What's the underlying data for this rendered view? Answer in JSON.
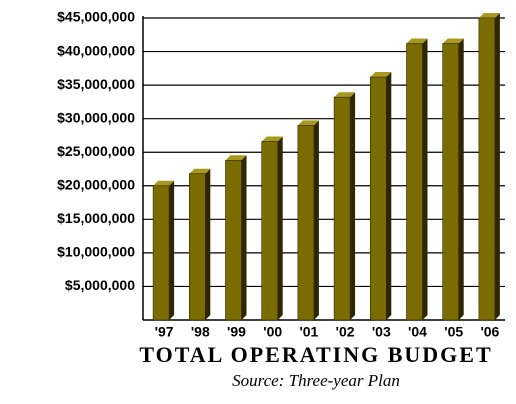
{
  "chart_data": {
    "type": "bar",
    "title": "TOTAL OPERATING BUDGET",
    "subtitle": "Source: Three-year Plan",
    "categories": [
      "'97",
      "'98",
      "'99",
      "'00",
      "'01",
      "'02",
      "'03",
      "'04",
      "'05",
      "'06"
    ],
    "values": [
      20000000,
      21800000,
      23800000,
      26600000,
      29000000,
      33200000,
      36200000,
      41200000,
      41200000,
      45000000
    ],
    "color": "#7a6c00",
    "ylim": [
      0,
      45000000
    ],
    "yticks": [
      {
        "value": 5000000,
        "label": "$5,000,000"
      },
      {
        "value": 10000000,
        "label": "$10,000,000"
      },
      {
        "value": 15000000,
        "label": "$15,000,000"
      },
      {
        "value": 20000000,
        "label": "$20,000,000"
      },
      {
        "value": 25000000,
        "label": "$25,000,000"
      },
      {
        "value": 30000000,
        "label": "$30,000,000"
      },
      {
        "value": 35000000,
        "label": "$35,000,000"
      },
      {
        "value": 40000000,
        "label": "$40,000,000"
      },
      {
        "value": 45000000,
        "label": "$45,000,000"
      }
    ],
    "grid": true
  }
}
